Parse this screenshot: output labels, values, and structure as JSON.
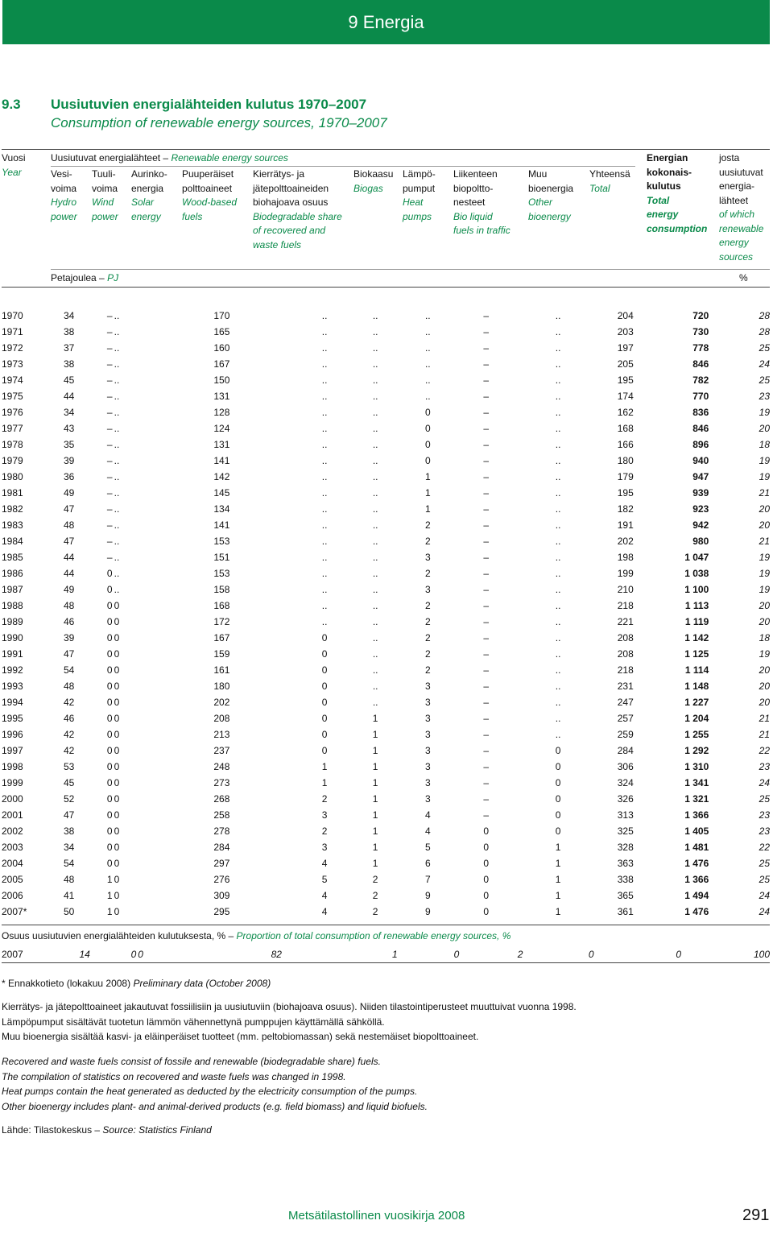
{
  "banner": "9 Energia",
  "section": {
    "number": "9.3",
    "title": "Uusiutuvien energialähteiden kulutus 1970–2007",
    "subtitle": "Consumption of renewable energy sources, 1970–2007"
  },
  "header": {
    "vuosi": "Vuosi",
    "year": "Year",
    "group_fi": "Uusiutuvat energialähteet –",
    "group_en": "Renewable energy sources",
    "col_hydro": [
      "Vesi-",
      "voima"
    ],
    "col_hydro_en": [
      "Hydro",
      "power"
    ],
    "col_wind": [
      "Tuuli-",
      "voima"
    ],
    "col_wind_en": [
      "Wind",
      "power"
    ],
    "col_solar": [
      "Aurinko-",
      "energia"
    ],
    "col_solar_en": [
      "Solar",
      "energy"
    ],
    "col_wood": [
      "Puuperäiset",
      "polttoaineet"
    ],
    "col_wood_en": [
      "Wood-based",
      "fuels"
    ],
    "col_waste": [
      "Kierrätys- ja",
      "jätepolttoaineiden",
      "biohajoava osuus"
    ],
    "col_waste_en": [
      "Biodegradable share",
      "of recovered and",
      "waste fuels"
    ],
    "col_biogas": "Biokaasu",
    "col_biogas_en": "Biogas",
    "col_heat": [
      "Lämpö-",
      "pumput"
    ],
    "col_heat_en": [
      "Heat",
      "pumps"
    ],
    "col_traffic": [
      "Liikenteen",
      "biopoltto-",
      "nesteet"
    ],
    "col_traffic_en": [
      "Bio liquid",
      "fuels in traffic"
    ],
    "col_other": [
      "Muu",
      "bioenergia"
    ],
    "col_other_en": [
      "Other",
      "bioenergy"
    ],
    "col_total": "Yhteensä",
    "col_total_en": "Total",
    "col_energy": [
      "Energian",
      "kokonais-",
      "kulutus"
    ],
    "col_energy_en": [
      "Total",
      "energy",
      "consumption"
    ],
    "col_share": [
      "josta",
      "uusiutuvat",
      "energia-",
      "lähteet"
    ],
    "col_share_en": [
      "of which",
      "renewable",
      "energy",
      "sources"
    ],
    "unit_fi": "Petajoulea –",
    "unit_en": "PJ",
    "unit_pct": "%"
  },
  "rows": [
    [
      "1970",
      "34",
      "–",
      "..",
      "170",
      "..",
      "..",
      "..",
      "–",
      "..",
      "204",
      "720",
      "28"
    ],
    [
      "1971",
      "38",
      "–",
      "..",
      "165",
      "..",
      "..",
      "..",
      "–",
      "..",
      "203",
      "730",
      "28"
    ],
    [
      "1972",
      "37",
      "–",
      "..",
      "160",
      "..",
      "..",
      "..",
      "–",
      "..",
      "197",
      "778",
      "25"
    ],
    [
      "1973",
      "38",
      "–",
      "..",
      "167",
      "..",
      "..",
      "..",
      "–",
      "..",
      "205",
      "846",
      "24"
    ],
    [
      "1974",
      "45",
      "–",
      "..",
      "150",
      "..",
      "..",
      "..",
      "–",
      "..",
      "195",
      "782",
      "25"
    ],
    [
      "1975",
      "44",
      "–",
      "..",
      "131",
      "..",
      "..",
      "..",
      "–",
      "..",
      "174",
      "770",
      "23"
    ],
    [
      "1976",
      "34",
      "–",
      "..",
      "128",
      "..",
      "..",
      "0",
      "–",
      "..",
      "162",
      "836",
      "19"
    ],
    [
      "1977",
      "43",
      "–",
      "..",
      "124",
      "..",
      "..",
      "0",
      "–",
      "..",
      "168",
      "846",
      "20"
    ],
    [
      "1978",
      "35",
      "–",
      "..",
      "131",
      "..",
      "..",
      "0",
      "–",
      "..",
      "166",
      "896",
      "18"
    ],
    [
      "1979",
      "39",
      "–",
      "..",
      "141",
      "..",
      "..",
      "0",
      "–",
      "..",
      "180",
      "940",
      "19"
    ],
    [
      "1980",
      "36",
      "–",
      "..",
      "142",
      "..",
      "..",
      "1",
      "–",
      "..",
      "179",
      "947",
      "19"
    ],
    [
      "1981",
      "49",
      "–",
      "..",
      "145",
      "..",
      "..",
      "1",
      "–",
      "..",
      "195",
      "939",
      "21"
    ],
    [
      "1982",
      "47",
      "–",
      "..",
      "134",
      "..",
      "..",
      "1",
      "–",
      "..",
      "182",
      "923",
      "20"
    ],
    [
      "1983",
      "48",
      "–",
      "..",
      "141",
      "..",
      "..",
      "2",
      "–",
      "..",
      "191",
      "942",
      "20"
    ],
    [
      "1984",
      "47",
      "–",
      "..",
      "153",
      "..",
      "..",
      "2",
      "–",
      "..",
      "202",
      "980",
      "21"
    ],
    [
      "1985",
      "44",
      "–",
      "..",
      "151",
      "..",
      "..",
      "3",
      "–",
      "..",
      "198",
      "1 047",
      "19"
    ],
    [
      "1986",
      "44",
      "0",
      "..",
      "153",
      "..",
      "..",
      "2",
      "–",
      "..",
      "199",
      "1 038",
      "19"
    ],
    [
      "1987",
      "49",
      "0",
      "..",
      "158",
      "..",
      "..",
      "3",
      "–",
      "..",
      "210",
      "1 100",
      "19"
    ],
    [
      "1988",
      "48",
      "0",
      "0",
      "168",
      "..",
      "..",
      "2",
      "–",
      "..",
      "218",
      "1 113",
      "20"
    ],
    [
      "1989",
      "46",
      "0",
      "0",
      "172",
      "..",
      "..",
      "2",
      "–",
      "..",
      "221",
      "1 119",
      "20"
    ],
    [
      "1990",
      "39",
      "0",
      "0",
      "167",
      "0",
      "..",
      "2",
      "–",
      "..",
      "208",
      "1 142",
      "18"
    ],
    [
      "1991",
      "47",
      "0",
      "0",
      "159",
      "0",
      "..",
      "2",
      "–",
      "..",
      "208",
      "1 125",
      "19"
    ],
    [
      "1992",
      "54",
      "0",
      "0",
      "161",
      "0",
      "..",
      "2",
      "–",
      "..",
      "218",
      "1 114",
      "20"
    ],
    [
      "1993",
      "48",
      "0",
      "0",
      "180",
      "0",
      "..",
      "3",
      "–",
      "..",
      "231",
      "1 148",
      "20"
    ],
    [
      "1994",
      "42",
      "0",
      "0",
      "202",
      "0",
      "..",
      "3",
      "–",
      "..",
      "247",
      "1 227",
      "20"
    ],
    [
      "1995",
      "46",
      "0",
      "0",
      "208",
      "0",
      "1",
      "3",
      "–",
      "..",
      "257",
      "1 204",
      "21"
    ],
    [
      "1996",
      "42",
      "0",
      "0",
      "213",
      "0",
      "1",
      "3",
      "–",
      "..",
      "259",
      "1 255",
      "21"
    ],
    [
      "1997",
      "42",
      "0",
      "0",
      "237",
      "0",
      "1",
      "3",
      "–",
      "0",
      "284",
      "1 292",
      "22"
    ],
    [
      "1998",
      "53",
      "0",
      "0",
      "248",
      "1",
      "1",
      "3",
      "–",
      "0",
      "306",
      "1 310",
      "23"
    ],
    [
      "1999",
      "45",
      "0",
      "0",
      "273",
      "1",
      "1",
      "3",
      "–",
      "0",
      "324",
      "1 341",
      "24"
    ],
    [
      "2000",
      "52",
      "0",
      "0",
      "268",
      "2",
      "1",
      "3",
      "–",
      "0",
      "326",
      "1 321",
      "25"
    ],
    [
      "2001",
      "47",
      "0",
      "0",
      "258",
      "3",
      "1",
      "4",
      "–",
      "0",
      "313",
      "1 366",
      "23"
    ],
    [
      "2002",
      "38",
      "0",
      "0",
      "278",
      "2",
      "1",
      "4",
      "0",
      "0",
      "325",
      "1 405",
      "23"
    ],
    [
      "2003",
      "34",
      "0",
      "0",
      "284",
      "3",
      "1",
      "5",
      "0",
      "1",
      "328",
      "1 481",
      "22"
    ],
    [
      "2004",
      "54",
      "0",
      "0",
      "297",
      "4",
      "1",
      "6",
      "0",
      "1",
      "363",
      "1 476",
      "25"
    ],
    [
      "2005",
      "48",
      "1",
      "0",
      "276",
      "5",
      "2",
      "7",
      "0",
      "1",
      "338",
      "1 366",
      "25"
    ],
    [
      "2006",
      "41",
      "1",
      "0",
      "309",
      "4",
      "2",
      "9",
      "0",
      "1",
      "365",
      "1 494",
      "24"
    ],
    [
      "2007*",
      "50",
      "1",
      "0",
      "295",
      "4",
      "2",
      "9",
      "0",
      "1",
      "361",
      "1 476",
      "24"
    ]
  ],
  "proportion": {
    "label_fi": "Osuus uusiutuvien energialähteiden kulutuksesta, % –",
    "label_en": "Proportion of total consumption of renewable energy sources, %",
    "row": [
      "2007",
      "14",
      "0",
      "0",
      "82",
      "1",
      "0",
      "2",
      "0",
      "0",
      "100"
    ]
  },
  "notes": {
    "prelim_fi": "* Ennakkotieto (lokakuu 2008)",
    "prelim_en": "Preliminary data (October 2008)",
    "fi": [
      "Kierrätys- ja jätepolttoaineet jakautuvat fossiilisiin ja uusiutuviin (biohajoava osuus). Niiden tilastointiperusteet muuttuivat vuonna 1998.",
      "Lämpöpumput sisältävät tuotetun lämmön vähennettynä pumppujen käyttämällä sähköllä.",
      "Muu bioenergia sisältää kasvi- ja eläinperäiset tuotteet (mm. peltobiomassan) sekä nestemäiset biopolttoaineet."
    ],
    "en": [
      "Recovered and waste fuels consist of fossile and renewable (biodegradable share) fuels.",
      "The compilation of statistics on recovered and waste fuels was changed in 1998.",
      "Heat pumps contain the heat generated as deducted by the electricity consumption of the pumps.",
      "Other bioenergy includes plant- and animal-derived products (e.g. field biomass) and liquid biofuels."
    ],
    "source_fi": "Lähde: Tilastokeskus –",
    "source_en": "Source: Statistics Finland"
  },
  "footer": {
    "title": "Metsätilastollinen vuosikirja 2008",
    "page": "291"
  },
  "colors": {
    "accent": "#0a8a4a"
  }
}
